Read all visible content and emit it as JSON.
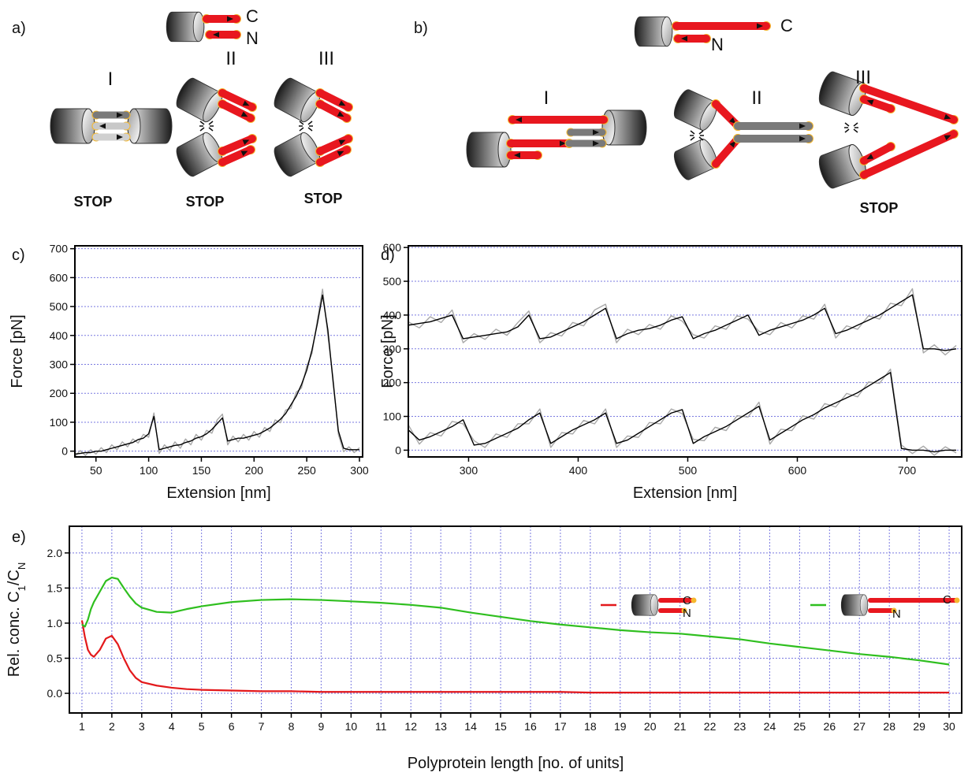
{
  "panels": {
    "a": {
      "label": "a)",
      "c": "C",
      "n": "N",
      "states": [
        {
          "numeral": "I",
          "status": "STOP"
        },
        {
          "numeral": "II",
          "status": "STOP"
        },
        {
          "numeral": "III",
          "status": "STOP"
        }
      ]
    },
    "b": {
      "label": "b)",
      "c": "C",
      "n": "N",
      "states": [
        {
          "numeral": "I"
        },
        {
          "numeral": "II"
        },
        {
          "numeral": "III",
          "status": "STOP"
        }
      ]
    }
  },
  "chart_data": [
    {
      "type": "line",
      "panel_label": "c)",
      "xlabel": "Extension [nm]",
      "ylabel": "Force [pN]",
      "x": [
        30,
        35,
        40,
        45,
        50,
        55,
        60,
        65,
        70,
        75,
        80,
        85,
        90,
        95,
        100,
        105,
        110,
        115,
        120,
        125,
        130,
        135,
        140,
        145,
        150,
        155,
        160,
        165,
        170,
        175,
        180,
        185,
        190,
        195,
        200,
        205,
        210,
        215,
        220,
        225,
        230,
        235,
        240,
        245,
        250,
        255,
        260,
        265,
        270,
        275,
        280,
        285,
        290,
        295,
        300
      ],
      "series": [
        {
          "color": "#a8a8a8",
          "values": [
            -20,
            2,
            -15,
            5,
            -10,
            12,
            -5,
            22,
            5,
            32,
            15,
            42,
            28,
            58,
            48,
            132,
            -8,
            22,
            3,
            32,
            10,
            42,
            22,
            58,
            38,
            72,
            62,
            108,
            128,
            22,
            52,
            32,
            58,
            38,
            68,
            48,
            82,
            68,
            108,
            98,
            142,
            148,
            204,
            218,
            294,
            338,
            452,
            560,
            402,
            252,
            58,
            -2,
            15,
            -5,
            12
          ]
        },
        {
          "color": "#000000",
          "values": [
            -10,
            -8,
            -5,
            -5,
            0,
            0,
            5,
            10,
            15,
            20,
            25,
            30,
            40,
            45,
            60,
            120,
            5,
            10,
            15,
            20,
            22,
            30,
            35,
            45,
            50,
            60,
            75,
            95,
            115,
            35,
            40,
            45,
            45,
            50,
            55,
            60,
            70,
            80,
            95,
            110,
            130,
            160,
            190,
            230,
            280,
            350,
            440,
            540,
            420,
            240,
            70,
            10,
            5,
            5,
            5
          ]
        }
      ],
      "xlim": [
        30,
        303
      ],
      "ylim": [
        -20,
        710
      ],
      "xticks": [
        50,
        100,
        150,
        200,
        250,
        300
      ],
      "yticks": [
        0,
        100,
        200,
        300,
        400,
        500,
        600,
        700
      ],
      "grid": {
        "x": false,
        "y": true
      },
      "grid_color": "#7a7ae0"
    },
    {
      "type": "line",
      "panel_label": "d)",
      "xlabel": "Extension [nm]",
      "ylabel": "Force [pN]",
      "x": [
        245,
        255,
        265,
        275,
        285,
        295,
        305,
        315,
        325,
        335,
        345,
        355,
        365,
        375,
        385,
        395,
        405,
        415,
        425,
        435,
        445,
        455,
        465,
        475,
        485,
        495,
        505,
        515,
        525,
        535,
        545,
        555,
        565,
        575,
        585,
        595,
        605,
        615,
        625,
        635,
        645,
        655,
        665,
        675,
        685,
        695,
        705,
        715,
        725,
        735,
        745
      ],
      "series": [
        {
          "color": "#a8a8a8",
          "values": [
            380,
            362,
            395,
            378,
            415,
            318,
            345,
            328,
            358,
            340,
            378,
            412,
            318,
            348,
            338,
            378,
            368,
            415,
            432,
            318,
            358,
            342,
            372,
            358,
            398,
            382,
            342,
            332,
            368,
            358,
            398,
            388,
            352,
            342,
            378,
            362,
            398,
            388,
            432,
            332,
            368,
            358,
            398,
            388,
            435,
            428,
            478,
            288,
            312,
            282,
            310
          ]
        },
        {
          "color": "#000000",
          "values": [
            370,
            375,
            380,
            390,
            400,
            330,
            335,
            340,
            345,
            350,
            365,
            400,
            330,
            335,
            350,
            365,
            380,
            400,
            420,
            330,
            345,
            355,
            360,
            370,
            385,
            395,
            330,
            345,
            355,
            370,
            385,
            400,
            340,
            355,
            365,
            375,
            385,
            400,
            420,
            345,
            355,
            370,
            385,
            400,
            420,
            440,
            460,
            300,
            300,
            295,
            300
          ]
        },
        {
          "color": "#a8a8a8",
          "values": [
            75,
            18,
            52,
            42,
            85,
            78,
            28,
            8,
            48,
            38,
            78,
            78,
            122,
            8,
            52,
            48,
            88,
            78,
            122,
            8,
            42,
            38,
            82,
            78,
            122,
            108,
            32,
            28,
            68,
            58,
            102,
            98,
            142,
            18,
            62,
            58,
            102,
            92,
            138,
            128,
            168,
            158,
            202,
            198,
            240,
            15,
            -10,
            12,
            -15,
            10,
            -8
          ]
        },
        {
          "color": "#000000",
          "values": [
            60,
            30,
            40,
            55,
            70,
            90,
            15,
            20,
            35,
            50,
            65,
            90,
            110,
            20,
            40,
            60,
            75,
            90,
            110,
            20,
            30,
            50,
            70,
            90,
            110,
            120,
            20,
            40,
            55,
            70,
            90,
            110,
            130,
            30,
            50,
            70,
            90,
            105,
            125,
            140,
            155,
            170,
            190,
            210,
            230,
            5,
            0,
            0,
            -5,
            0,
            0
          ]
        }
      ],
      "xlim": [
        245,
        750
      ],
      "ylim": [
        -20,
        605
      ],
      "xticks": [
        300,
        400,
        500,
        600,
        700
      ],
      "yticks": [
        0,
        100,
        200,
        300,
        400,
        500,
        600
      ],
      "grid": {
        "x": false,
        "y": true
      },
      "grid_color": "#7a7ae0"
    },
    {
      "type": "line",
      "panel_label": "e)",
      "xlabel": "Polyprotein length [no. of units]",
      "ylabel": [
        "Rel. conc. C",
        "1",
        "/C",
        "N"
      ],
      "x": [
        1,
        1.1,
        1.2,
        1.3,
        1.4,
        1.6,
        1.8,
        2,
        2.2,
        2.4,
        2.6,
        2.8,
        3,
        3.5,
        4,
        4.5,
        5,
        6,
        7,
        8,
        9,
        10,
        11,
        12,
        13,
        14,
        15,
        16,
        17,
        18,
        19,
        20,
        21,
        22,
        23,
        24,
        25,
        26,
        27,
        28,
        29,
        30
      ],
      "series": [
        {
          "color": "#e3191c",
          "values": [
            1.04,
            0.8,
            0.62,
            0.55,
            0.52,
            0.62,
            0.78,
            0.82,
            0.7,
            0.5,
            0.33,
            0.22,
            0.16,
            0.11,
            0.08,
            0.06,
            0.05,
            0.04,
            0.03,
            0.03,
            0.02,
            0.02,
            0.02,
            0.02,
            0.02,
            0.02,
            0.02,
            0.02,
            0.02,
            0.01,
            0.01,
            0.01,
            0.01,
            0.01,
            0.01,
            0.01,
            0.01,
            0.01,
            0.01,
            0.01,
            0.01,
            0.01
          ]
        },
        {
          "color": "#2fbf1f",
          "values": [
            0.98,
            0.95,
            1.05,
            1.2,
            1.3,
            1.45,
            1.6,
            1.65,
            1.63,
            1.5,
            1.38,
            1.28,
            1.22,
            1.16,
            1.15,
            1.2,
            1.24,
            1.3,
            1.33,
            1.34,
            1.33,
            1.31,
            1.29,
            1.26,
            1.22,
            1.15,
            1.09,
            1.03,
            0.98,
            0.94,
            0.9,
            0.87,
            0.85,
            0.81,
            0.77,
            0.71,
            0.66,
            0.61,
            0.56,
            0.52,
            0.47,
            0.41
          ]
        }
      ],
      "legend": [
        {
          "c": "C",
          "n": "N"
        },
        {
          "c": "C",
          "n": "N"
        }
      ],
      "xlim": [
        0.58,
        30.42
      ],
      "ylim": [
        -0.28,
        2.38
      ],
      "xticks": [
        1,
        2,
        3,
        4,
        5,
        6,
        7,
        8,
        9,
        10,
        11,
        12,
        13,
        14,
        15,
        16,
        17,
        18,
        19,
        20,
        21,
        22,
        23,
        24,
        25,
        26,
        27,
        28,
        29,
        30
      ],
      "yticks": [
        {
          "value": 0,
          "label": "0.0"
        },
        0.5,
        {
          "value": 1,
          "label": "1.0"
        },
        1.5,
        {
          "value": 2,
          "label": "2.0"
        }
      ],
      "grid": {
        "x": true,
        "y": true
      },
      "grid_color": "#7a7ae0"
    }
  ]
}
